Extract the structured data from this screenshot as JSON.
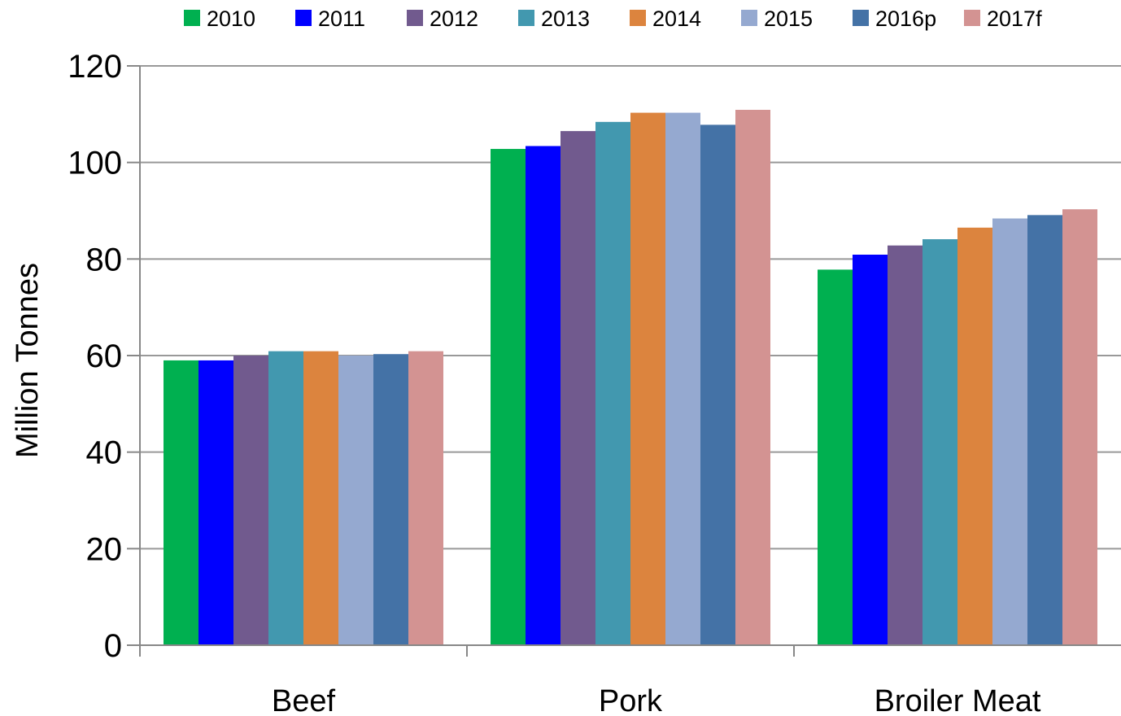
{
  "chart_data": {
    "type": "bar",
    "title": "",
    "xlabel": "",
    "ylabel": "Million Tonnes",
    "ylim": [
      0,
      120
    ],
    "yticks": [
      0,
      20,
      40,
      60,
      80,
      100,
      120
    ],
    "grid": true,
    "legend_position": "top",
    "categories": [
      "Beef",
      "Pork",
      "Broiler Meat"
    ],
    "series": [
      {
        "name": "2010",
        "color": "#00B050",
        "values": [
          59,
          102.8,
          77.8
        ]
      },
      {
        "name": "2011",
        "color": "#0000FF",
        "values": [
          59,
          103.4,
          80.9
        ]
      },
      {
        "name": "2012",
        "color": "#715A8E",
        "values": [
          60,
          106.5,
          82.8
        ]
      },
      {
        "name": "2013",
        "color": "#4298AF",
        "values": [
          60.9,
          108.4,
          84.1
        ]
      },
      {
        "name": "2014",
        "color": "#DC843E",
        "values": [
          60.9,
          110.3,
          86.5
        ]
      },
      {
        "name": "2015",
        "color": "#95A9D0",
        "values": [
          60,
          110.3,
          88.4
        ]
      },
      {
        "name": "2016p",
        "color": "#4472A6",
        "values": [
          60.3,
          107.8,
          89.1
        ]
      },
      {
        "name": "2017f",
        "color": "#D39392",
        "values": [
          60.9,
          110.9,
          90.3
        ]
      }
    ]
  }
}
